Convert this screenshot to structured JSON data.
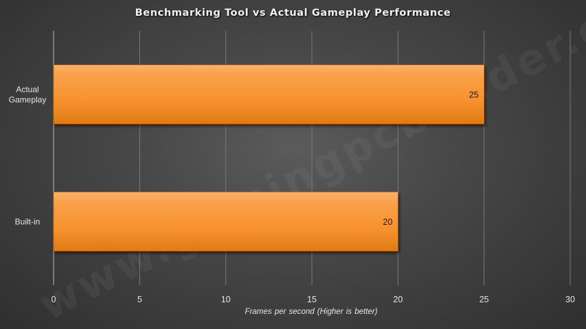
{
  "watermark": "www.gamingpcbuilder.com",
  "chart_data": {
    "type": "bar",
    "orientation": "horizontal",
    "title": "Benchmarking Tool vs Actual Gameplay Performance",
    "categories": [
      "Actual Gameplay",
      "Built-in"
    ],
    "values": [
      25,
      20
    ],
    "data_labels": [
      "25",
      "20"
    ],
    "xlabel": "Frames  per second  (Higher is better)",
    "ylabel": "",
    "xlim": [
      0,
      30
    ],
    "xticks": [
      0,
      5,
      10,
      15,
      20,
      25,
      30
    ],
    "grid": "vertical",
    "legend": "none",
    "bar_color": "#f7932e",
    "background_color": "#474747",
    "text_color": "#e6e6e6"
  }
}
